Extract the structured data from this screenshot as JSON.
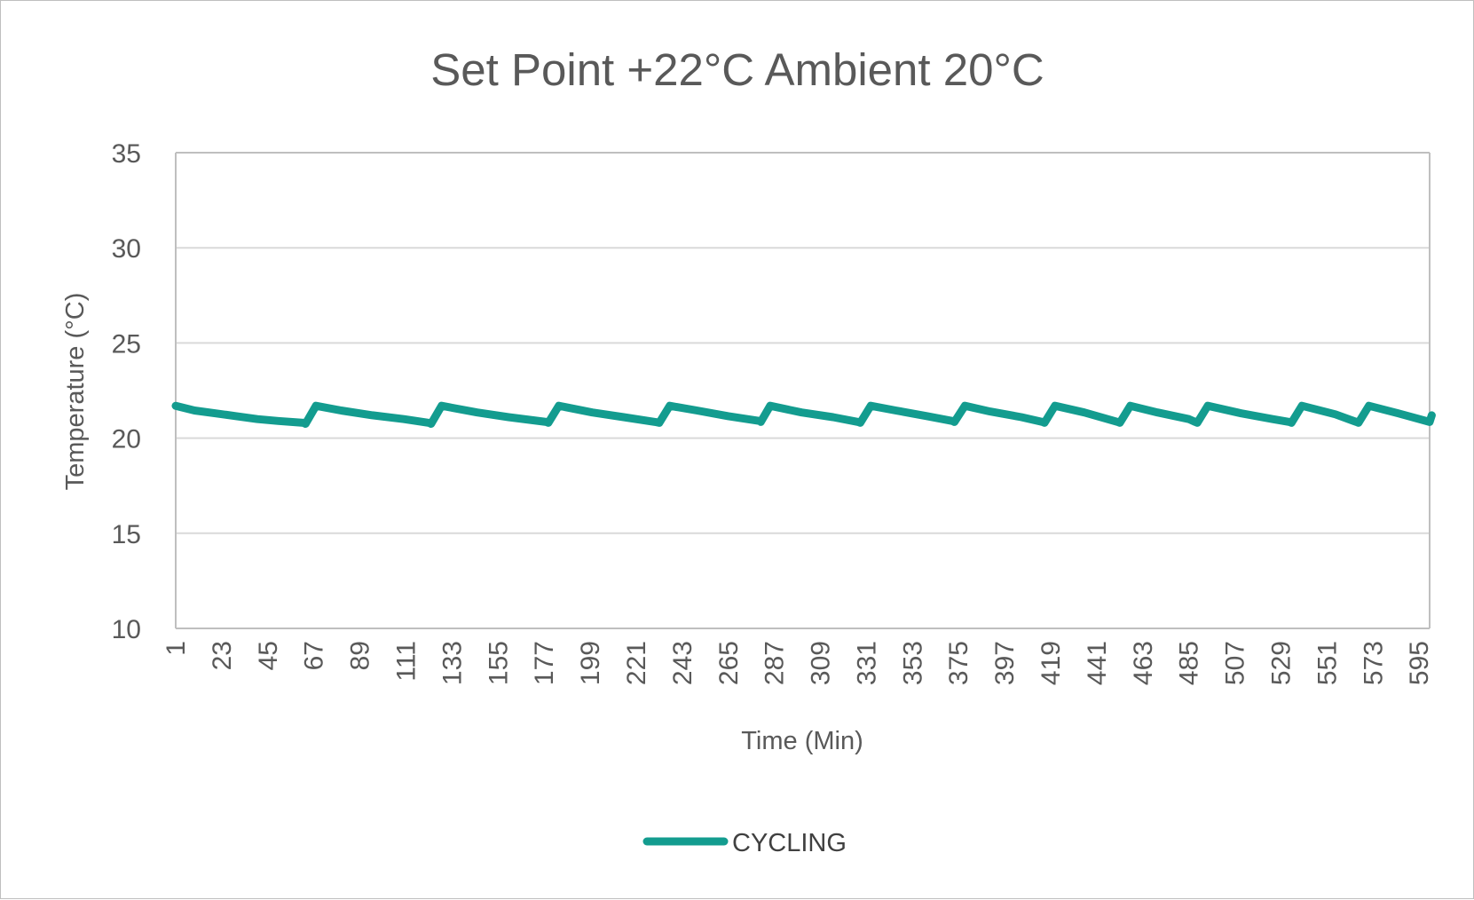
{
  "chart_data": {
    "type": "line",
    "title": "Set Point +22°C Ambient 20°C",
    "xlabel": "Time (Min)",
    "ylabel": "Temperature (°C)",
    "ylim": [
      10,
      35
    ],
    "yticks": [
      "10",
      "15",
      "20",
      "25",
      "30",
      "35"
    ],
    "xticks": [
      "1",
      "23",
      "45",
      "67",
      "89",
      "111",
      "133",
      "155",
      "177",
      "199",
      "221",
      "243",
      "265",
      "287",
      "309",
      "331",
      "353",
      "375",
      "397",
      "419",
      "441",
      "463",
      "485",
      "507",
      "529",
      "551",
      "573",
      "595"
    ],
    "xlim": [
      1,
      600
    ],
    "grid": true,
    "legend_position": "bottom",
    "colors": {
      "series": "#139c8f",
      "grid": "#d9d9d9",
      "axis": "#bfbfbf",
      "text": "#595959"
    },
    "series": [
      {
        "name": "CYCLING",
        "x": [
          1,
          10,
          20,
          30,
          40,
          50,
          62,
          63,
          68,
          80,
          95,
          110,
          122,
          123,
          128,
          145,
          160,
          178,
          179,
          184,
          200,
          215,
          230,
          232,
          237,
          250,
          265,
          280,
          280.5,
          285,
          300,
          315,
          327,
          328,
          333,
          345,
          360,
          372,
          373,
          378,
          390,
          405,
          415,
          416,
          421,
          435,
          451,
          452,
          457,
          470,
          485,
          488,
          489,
          494,
          510,
          525,
          533,
          534,
          539,
          555,
          565,
          566,
          571,
          585,
          600,
          601
        ],
        "y": [
          21.7,
          21.45,
          21.3,
          21.15,
          21.0,
          20.9,
          20.8,
          20.75,
          21.7,
          21.45,
          21.2,
          21.0,
          20.8,
          20.75,
          21.7,
          21.35,
          21.1,
          20.85,
          20.8,
          21.7,
          21.35,
          21.1,
          20.85,
          20.8,
          21.7,
          21.45,
          21.15,
          20.9,
          20.85,
          21.7,
          21.35,
          21.1,
          20.85,
          20.8,
          21.7,
          21.45,
          21.15,
          20.9,
          20.85,
          21.7,
          21.4,
          21.1,
          20.85,
          20.8,
          21.7,
          21.35,
          20.85,
          20.8,
          21.7,
          21.35,
          21.0,
          20.85,
          20.8,
          21.7,
          21.3,
          21.0,
          20.85,
          20.8,
          21.7,
          21.25,
          20.85,
          20.8,
          21.7,
          21.3,
          20.85,
          21.2
        ]
      }
    ]
  }
}
